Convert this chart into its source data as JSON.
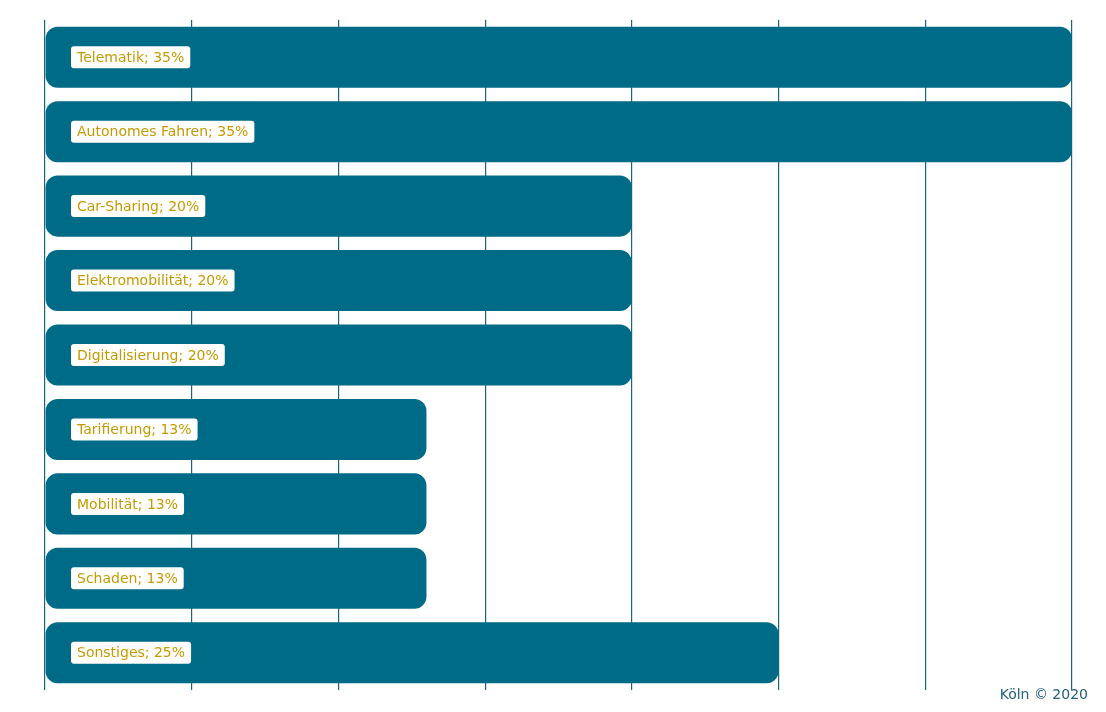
{
  "chart_data": {
    "type": "bar",
    "orientation": "horizontal",
    "categories": [
      null,
      null,
      null,
      null,
      null,
      null,
      null,
      null,
      null
    ],
    "values": [
      35,
      35,
      20,
      20,
      20,
      13,
      13,
      13,
      25
    ],
    "value_labels": [
      "Telematik; 35%",
      "Autonomes Fahren; 35%",
      "Car-Sharing; 20%",
      "Elektromobilität; 20%",
      "Digitalisierung; 20%",
      "Tarifierung; 13%",
      "Mobilität; 13%",
      "Schaden; 13%",
      "Sonstiges; 25%"
    ],
    "color": "#006b86",
    "xlim": [
      0,
      35
    ],
    "xticks": [
      {
        "value": 0,
        "label": null
      },
      {
        "value": 5,
        "label": null
      },
      {
        "value": 10,
        "label": null
      },
      {
        "value": 15,
        "label": null
      },
      {
        "value": 20,
        "label": null
      },
      {
        "value": 25,
        "label": null
      },
      {
        "value": 30,
        "label": null
      },
      {
        "value": 35,
        "label": null
      }
    ],
    "grid": "x",
    "tick_labels": false,
    "legend": false,
    "annotations": [
      "Köln © 2020"
    ]
  }
}
